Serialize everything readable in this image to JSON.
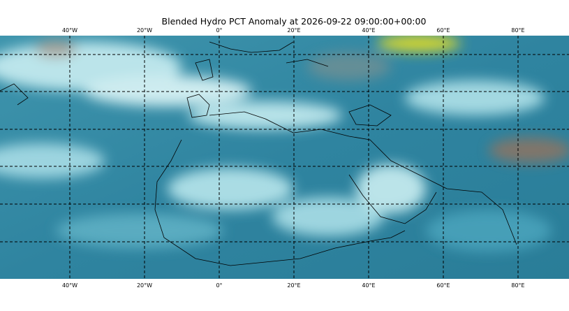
{
  "header": {
    "title": "Blended Hydro PCT Anomaly at 2026-09-22 09:00:00+00:00"
  },
  "map": {
    "longitude_labels": [
      "40°W",
      "20°W",
      "0°",
      "20°E",
      "40°E",
      "60°E",
      "80°E"
    ]
  }
}
